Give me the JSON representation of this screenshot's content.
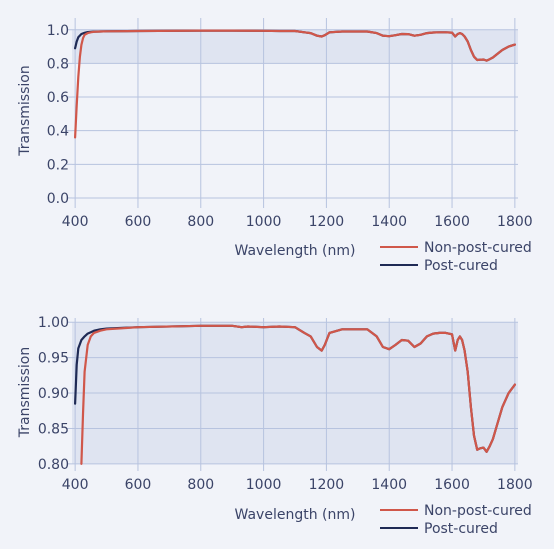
{
  "colors": {
    "background": "#f1f3f9",
    "band": "#dfe4f1",
    "grid": "#b7c3df",
    "non_post_cured": "#d0574a",
    "post_cured": "#1f2a55"
  },
  "chart_data": [
    {
      "type": "line",
      "xlabel": "Wavelength (nm)",
      "ylabel": "Transmission",
      "xlim": [
        390,
        1810
      ],
      "ylim": [
        -0.03,
        1.07
      ],
      "xticks": [
        "400",
        "600",
        "800",
        "1000",
        "1200",
        "1400",
        "1600",
        "1800"
      ],
      "yticks": [
        "0.0",
        "0.2",
        "0.4",
        "0.6",
        "0.8",
        "1.0"
      ],
      "shaded_band": [
        0.8,
        1.0
      ],
      "grid": true,
      "legend_position": "bottom-right",
      "series": [
        {
          "name": "Non-post-cured",
          "x": [
            400,
            405,
            410,
            415,
            420,
            425,
            430,
            440,
            450,
            460,
            480,
            500,
            600,
            800,
            900,
            1000,
            1050,
            1100,
            1130,
            1150,
            1170,
            1185,
            1195,
            1210,
            1250,
            1300,
            1330,
            1360,
            1380,
            1400,
            1420,
            1440,
            1460,
            1480,
            1500,
            1520,
            1540,
            1560,
            1580,
            1600,
            1610,
            1618,
            1625,
            1632,
            1640,
            1650,
            1660,
            1670,
            1680,
            1690,
            1700,
            1710,
            1720,
            1730,
            1740,
            1760,
            1780,
            1800
          ],
          "y": [
            0.36,
            0.55,
            0.72,
            0.84,
            0.91,
            0.95,
            0.97,
            0.98,
            0.985,
            0.988,
            0.99,
            0.991,
            0.993,
            0.995,
            0.995,
            0.994,
            0.993,
            0.993,
            0.985,
            0.98,
            0.965,
            0.96,
            0.968,
            0.985,
            0.99,
            0.99,
            0.99,
            0.98,
            0.965,
            0.962,
            0.968,
            0.975,
            0.974,
            0.965,
            0.97,
            0.98,
            0.984,
            0.985,
            0.985,
            0.983,
            0.96,
            0.975,
            0.98,
            0.975,
            0.96,
            0.93,
            0.88,
            0.84,
            0.82,
            0.822,
            0.823,
            0.817,
            0.825,
            0.835,
            0.85,
            0.88,
            0.9,
            0.912
          ]
        },
        {
          "name": "Post-cured",
          "x": [
            400,
            405,
            410,
            420,
            430,
            440,
            450,
            460,
            480,
            500,
            600,
            800,
            900,
            1000,
            1050,
            1100,
            1130,
            1150,
            1170,
            1185,
            1195,
            1210,
            1250,
            1300,
            1330,
            1360,
            1380,
            1400,
            1420,
            1440,
            1460,
            1480,
            1500,
            1520,
            1540,
            1560,
            1580,
            1600,
            1610,
            1618,
            1625,
            1632,
            1640,
            1650,
            1660,
            1670,
            1680,
            1690,
            1700,
            1710,
            1720,
            1730,
            1740,
            1760,
            1780,
            1800
          ],
          "y": [
            0.89,
            0.93,
            0.955,
            0.975,
            0.982,
            0.986,
            0.988,
            0.989,
            0.99,
            0.991,
            0.993,
            0.995,
            0.995,
            0.994,
            0.993,
            0.993,
            0.985,
            0.98,
            0.965,
            0.96,
            0.968,
            0.985,
            0.99,
            0.99,
            0.99,
            0.98,
            0.965,
            0.962,
            0.968,
            0.975,
            0.974,
            0.965,
            0.97,
            0.98,
            0.984,
            0.985,
            0.985,
            0.983,
            0.96,
            0.975,
            0.98,
            0.975,
            0.96,
            0.93,
            0.88,
            0.84,
            0.82,
            0.822,
            0.823,
            0.817,
            0.825,
            0.835,
            0.85,
            0.88,
            0.9,
            0.912
          ]
        }
      ]
    },
    {
      "type": "line",
      "xlabel": "Wavelength (nm)",
      "ylabel": "Transmission",
      "xlim": [
        390,
        1810
      ],
      "ylim": [
        0.797,
        1.006
      ],
      "xticks": [
        "400",
        "600",
        "800",
        "1000",
        "1200",
        "1400",
        "1600",
        "1800"
      ],
      "yticks": [
        "0.80",
        "0.85",
        "0.90",
        "0.95",
        "1.00"
      ],
      "shaded_band": [
        0.8,
        1.0
      ],
      "grid": true,
      "legend_position": "bottom-right",
      "series": [
        {
          "name": "Non-post-cured",
          "x": [
            420,
            425,
            430,
            440,
            450,
            460,
            480,
            500,
            600,
            800,
            900,
            930,
            950,
            1000,
            1050,
            1100,
            1130,
            1150,
            1170,
            1185,
            1195,
            1210,
            1250,
            1300,
            1330,
            1360,
            1380,
            1400,
            1420,
            1440,
            1460,
            1480,
            1500,
            1520,
            1540,
            1560,
            1580,
            1600,
            1610,
            1618,
            1625,
            1632,
            1640,
            1650,
            1660,
            1670,
            1680,
            1690,
            1700,
            1710,
            1720,
            1730,
            1740,
            1760,
            1780,
            1800
          ],
          "y": [
            0.8,
            0.87,
            0.93,
            0.968,
            0.98,
            0.985,
            0.988,
            0.99,
            0.993,
            0.995,
            0.995,
            0.993,
            0.994,
            0.993,
            0.994,
            0.993,
            0.985,
            0.98,
            0.965,
            0.96,
            0.968,
            0.985,
            0.99,
            0.99,
            0.99,
            0.98,
            0.965,
            0.962,
            0.968,
            0.975,
            0.974,
            0.965,
            0.97,
            0.98,
            0.984,
            0.985,
            0.985,
            0.983,
            0.96,
            0.975,
            0.98,
            0.975,
            0.96,
            0.93,
            0.88,
            0.84,
            0.82,
            0.822,
            0.823,
            0.817,
            0.825,
            0.835,
            0.85,
            0.88,
            0.9,
            0.912
          ]
        },
        {
          "name": "Post-cured",
          "x": [
            400,
            405,
            410,
            420,
            430,
            440,
            450,
            460,
            480,
            500,
            600,
            800,
            900,
            930,
            950,
            1000,
            1050,
            1100,
            1130,
            1150,
            1170,
            1185,
            1195,
            1210,
            1250,
            1300,
            1330,
            1360,
            1380,
            1400,
            1420,
            1440,
            1460,
            1480,
            1500,
            1520,
            1540,
            1560,
            1580,
            1600,
            1610,
            1618,
            1625,
            1632,
            1640,
            1650,
            1660,
            1670,
            1680,
            1690,
            1700,
            1710,
            1720,
            1730,
            1740,
            1760,
            1780,
            1800
          ],
          "y": [
            0.885,
            0.94,
            0.963,
            0.975,
            0.98,
            0.984,
            0.986,
            0.988,
            0.99,
            0.991,
            0.993,
            0.995,
            0.995,
            0.993,
            0.994,
            0.993,
            0.994,
            0.993,
            0.985,
            0.98,
            0.965,
            0.96,
            0.968,
            0.985,
            0.99,
            0.99,
            0.99,
            0.98,
            0.965,
            0.962,
            0.968,
            0.975,
            0.974,
            0.965,
            0.97,
            0.98,
            0.984,
            0.985,
            0.985,
            0.983,
            0.96,
            0.975,
            0.98,
            0.975,
            0.96,
            0.93,
            0.88,
            0.84,
            0.82,
            0.822,
            0.823,
            0.817,
            0.825,
            0.835,
            0.85,
            0.88,
            0.9,
            0.912
          ]
        }
      ]
    }
  ]
}
